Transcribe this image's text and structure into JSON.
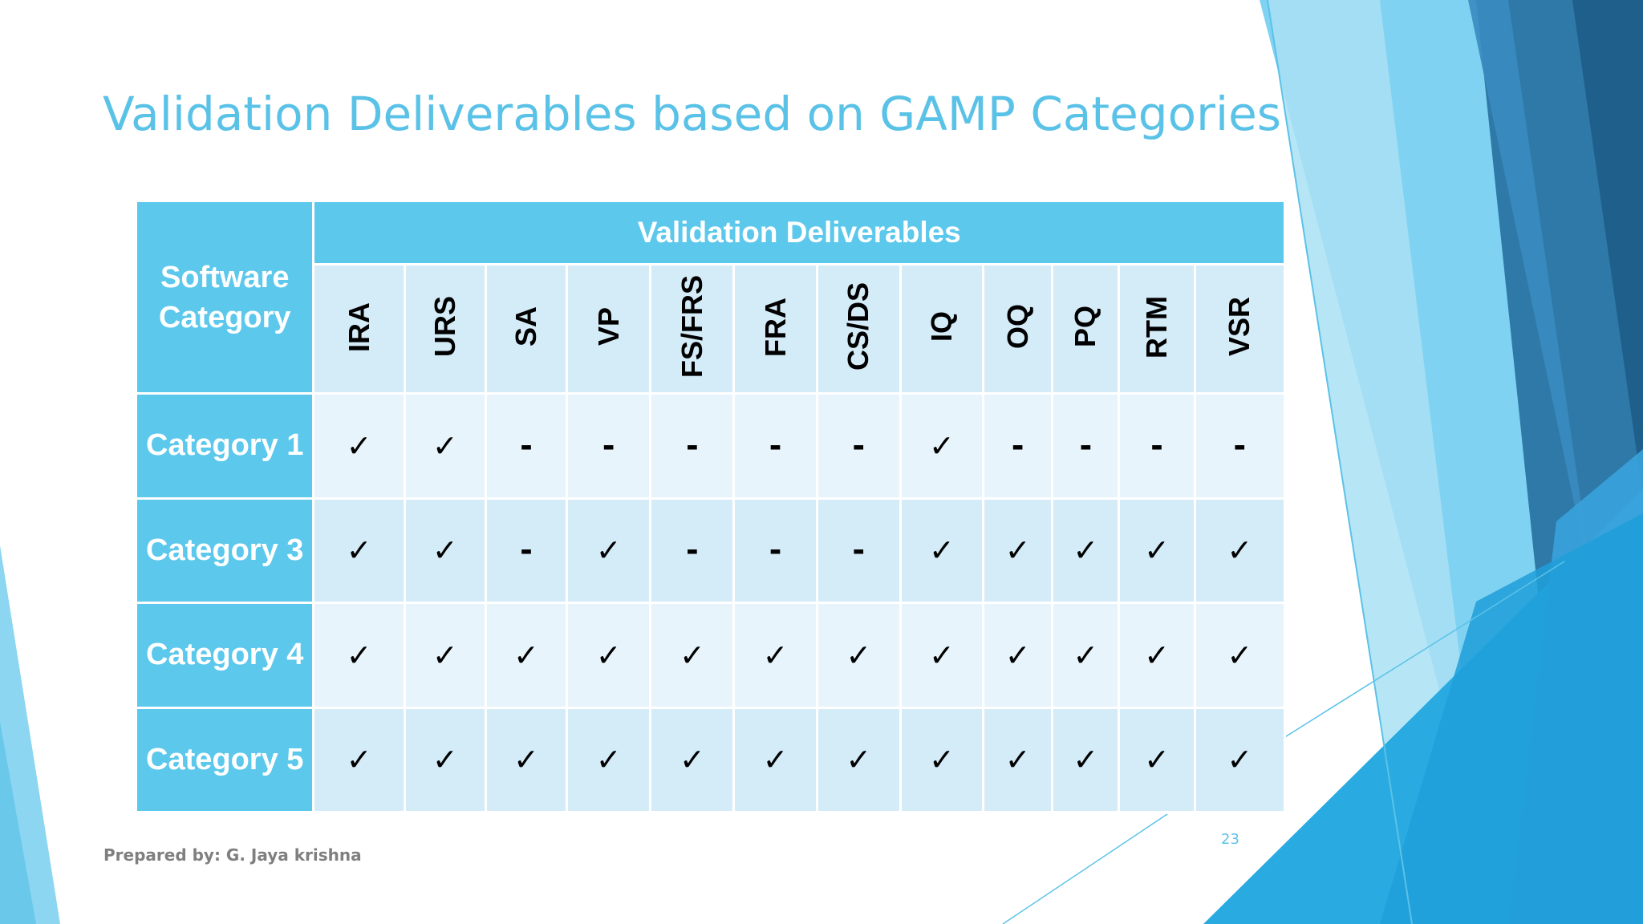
{
  "slide": {
    "title": "Validation Deliverables based on GAMP Categories",
    "footer": "Prepared by: G. Jaya krishna",
    "page_number": "23"
  },
  "table": {
    "corner_header": "Software Category",
    "group_header": "Validation Deliverables",
    "columns": [
      "IRA",
      "URS",
      "SA",
      "VP",
      "FS/FRS",
      "FRA",
      "CS/DS",
      "IQ",
      "OQ",
      "PQ",
      "RTM",
      "VSR"
    ],
    "rows": [
      {
        "label": "Category 1",
        "cells": [
          "✓",
          "✓",
          "-",
          "-",
          "-",
          "-",
          "-",
          "✓",
          "-",
          "-",
          "-",
          "-"
        ]
      },
      {
        "label": "Category 3",
        "cells": [
          "✓",
          "✓",
          "-",
          "✓",
          "-",
          "-",
          "-",
          "✓",
          "✓",
          "✓",
          "✓",
          "✓"
        ]
      },
      {
        "label": "Category 4",
        "cells": [
          "✓",
          "✓",
          "✓",
          "✓",
          "✓",
          "✓",
          "✓",
          "✓",
          "✓",
          "✓",
          "✓",
          "✓"
        ]
      },
      {
        "label": "Category 5",
        "cells": [
          "✓",
          "✓",
          "✓",
          "✓",
          "✓",
          "✓",
          "✓",
          "✓",
          "✓",
          "✓",
          "✓",
          "✓"
        ]
      }
    ]
  },
  "colors": {
    "accent": "#5bc2e7",
    "header_fill": "#5bc8ec",
    "cell_light": "#e8f4fb",
    "cell_mid": "#d4ebf8",
    "footer_text": "#7f7f7f"
  }
}
